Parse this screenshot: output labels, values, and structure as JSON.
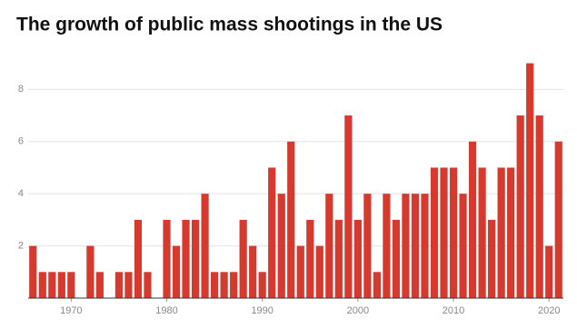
{
  "chart_data": {
    "type": "bar",
    "title": "The growth of public mass shootings in the US",
    "x": [
      1966,
      1967,
      1968,
      1969,
      1970,
      1971,
      1972,
      1973,
      1974,
      1975,
      1976,
      1977,
      1978,
      1979,
      1980,
      1981,
      1982,
      1983,
      1984,
      1985,
      1986,
      1987,
      1988,
      1989,
      1990,
      1991,
      1992,
      1993,
      1994,
      1995,
      1996,
      1997,
      1998,
      1999,
      2000,
      2001,
      2002,
      2003,
      2004,
      2005,
      2006,
      2007,
      2008,
      2009,
      2010,
      2011,
      2012,
      2013,
      2014,
      2015,
      2016,
      2017,
      2018,
      2019,
      2020,
      2021
    ],
    "values": [
      2,
      1,
      1,
      1,
      1,
      0,
      2,
      1,
      0,
      1,
      1,
      3,
      1,
      0,
      3,
      2,
      3,
      3,
      4,
      1,
      1,
      1,
      3,
      2,
      1,
      5,
      4,
      6,
      2,
      3,
      2,
      4,
      3,
      7,
      3,
      4,
      1,
      4,
      3,
      4,
      4,
      4,
      5,
      5,
      5,
      4,
      6,
      5,
      3,
      5,
      5,
      7,
      9,
      7,
      2,
      6
    ],
    "color": "#d63a2f",
    "xlim": [
      1965.5,
      2021.5
    ],
    "xticks": [
      1970,
      1980,
      1990,
      2000,
      2010,
      2020
    ],
    "ylim": [
      0,
      9.3
    ],
    "yticks": [
      2,
      4,
      6,
      8
    ],
    "grid": true
  }
}
